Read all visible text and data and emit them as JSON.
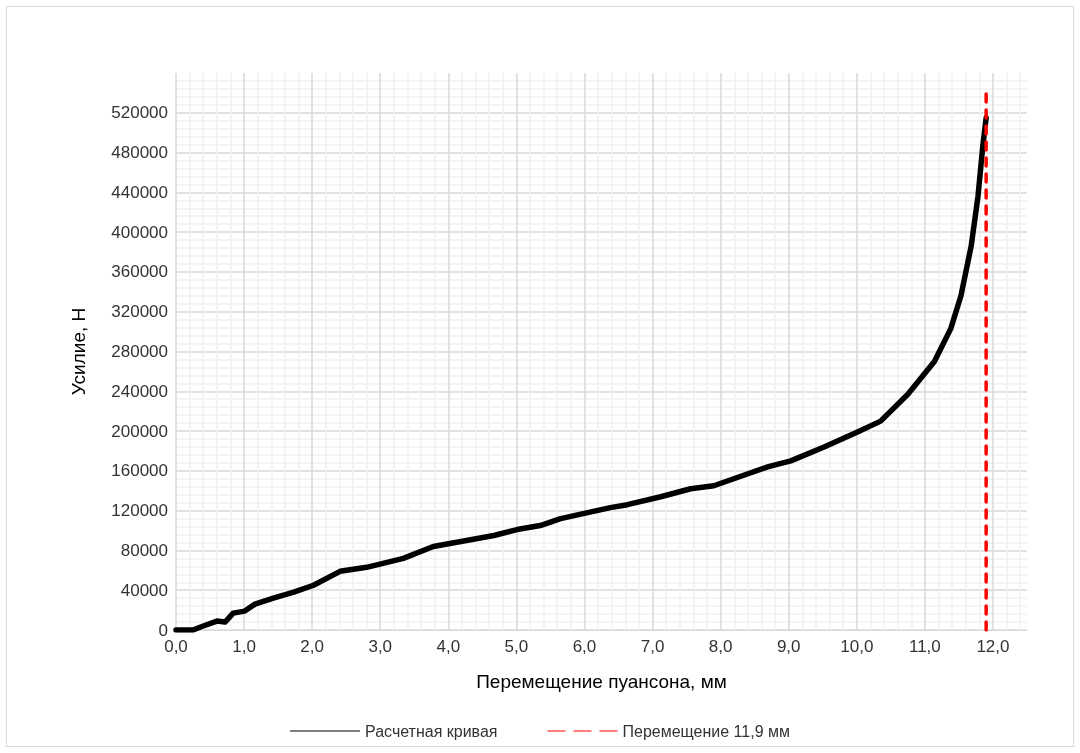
{
  "chart_data": {
    "type": "line",
    "xlabel": "Перемещение пуансона, мм",
    "ylabel": "Усилие, Н",
    "xlim": [
      0,
      12.5
    ],
    "xticks": [
      {
        "value": 0,
        "label": "0,0"
      },
      {
        "value": 1,
        "label": "1,0"
      },
      {
        "value": 2,
        "label": "2,0"
      },
      {
        "value": 3,
        "label": "3,0"
      },
      {
        "value": 4,
        "label": "4,0"
      },
      {
        "value": 5,
        "label": "5,0"
      },
      {
        "value": 6,
        "label": "6,0"
      },
      {
        "value": 7,
        "label": "7,0"
      },
      {
        "value": 8,
        "label": "8,0"
      },
      {
        "value": 9,
        "label": "9,0"
      },
      {
        "value": 10,
        "label": "10,0"
      },
      {
        "value": 11,
        "label": "11,0"
      },
      {
        "value": 12,
        "label": "12,0"
      }
    ],
    "ylim": [
      0,
      560000
    ],
    "yticks": [
      0,
      40000,
      80000,
      120000,
      160000,
      200000,
      240000,
      280000,
      320000,
      360000,
      400000,
      440000,
      480000,
      520000
    ],
    "grid": true,
    "legend": "bottom",
    "marker": "none",
    "series": [
      {
        "name": "Расчетная кривая",
        "color": "#000000",
        "line_style": "solid",
        "x": [
          0,
          0.25,
          0.4,
          0.6,
          0.72,
          0.84,
          1.01,
          1.16,
          1.43,
          1.73,
          2.02,
          2.41,
          2.8,
          3.34,
          3.78,
          4.67,
          5.01,
          5.35,
          5.65,
          6.38,
          6.63,
          7.12,
          7.56,
          7.9,
          8.69,
          9.03,
          9.52,
          10.01,
          10.35,
          10.75,
          11.14,
          11.38,
          11.53,
          11.68,
          11.78,
          11.85,
          11.9
        ],
        "values": [
          0,
          0,
          4000,
          9000,
          8000,
          17000,
          19000,
          26000,
          32000,
          38000,
          45000,
          59000,
          63000,
          72000,
          84000,
          95000,
          101000,
          105000,
          112000,
          123000,
          126000,
          134000,
          142000,
          145000,
          164000,
          170000,
          184000,
          199000,
          210000,
          237000,
          270000,
          303000,
          336000,
          386000,
          436000,
          486000,
          515000
        ]
      },
      {
        "name": "Перемещение 11,9 мм",
        "color": "#ff0000",
        "line_style": "dashed",
        "x": [
          11.9,
          11.9
        ],
        "values": [
          0,
          540000
        ]
      }
    ]
  }
}
